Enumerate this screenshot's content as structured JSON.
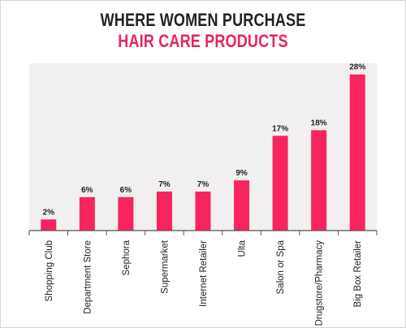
{
  "title_line1": "WHERE WOMEN PURCHASE",
  "title_line2": "HAIR CARE PRODUCTS",
  "colors": {
    "bar": "#f7245f",
    "plot_bg": "#f1efef",
    "title_accent": "#e8245f",
    "axis": "#555555"
  },
  "chart_data": {
    "type": "bar",
    "title": "WHERE WOMEN PURCHASE HAIR CARE PRODUCTS",
    "categories": [
      "Shopping Club",
      "Department Store",
      "Sephora",
      "Supermarket",
      "Internet Retailer",
      "Ulta",
      "Salon or Spa",
      "Drugstore/Pharmacy",
      "Big Box Retailer"
    ],
    "values": [
      2,
      6,
      6,
      7,
      7,
      9,
      17,
      18,
      28
    ],
    "value_labels": [
      "2%",
      "6%",
      "6%",
      "7%",
      "7%",
      "9%",
      "17%",
      "18%",
      "28%"
    ],
    "unit": "%",
    "ylim": [
      0,
      30
    ],
    "grid": false,
    "legend": "none"
  }
}
